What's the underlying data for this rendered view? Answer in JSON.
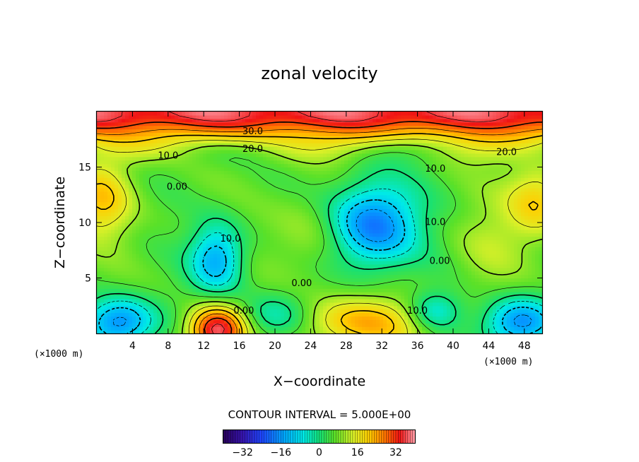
{
  "chart_data": {
    "type": "heatmap",
    "title": "zonal velocity",
    "xlabel": "X−coordinate",
    "ylabel": "Z−coordinate",
    "x_unit_left": "(×1000 m)",
    "x_unit_right": "(×1000 m)",
    "xlim": [
      0,
      50
    ],
    "ylim": [
      0,
      20
    ],
    "x_ticks": [
      4,
      8,
      12,
      16,
      20,
      24,
      28,
      32,
      36,
      40,
      44,
      48
    ],
    "x_tick_labels": [
      "4",
      "8",
      "12",
      "16",
      "20",
      "24",
      "28",
      "32",
      "36",
      "40",
      "44",
      "48"
    ],
    "y_ticks": [
      5,
      10,
      15
    ],
    "y_tick_labels": [
      "5",
      "10",
      "15"
    ],
    "contour_interval_text": "CONTOUR INTERVAL = 5.000E+00",
    "contour_interval": 5.0,
    "colorbar": {
      "range": [
        -40,
        40
      ],
      "ticks": [
        -32,
        -16,
        0,
        16,
        32
      ],
      "tick_labels": [
        "−32",
        "−16",
        "0",
        "16",
        "32"
      ]
    },
    "contour_labels": [
      {
        "text": "30.0",
        "x": 17.5,
        "z": 18.2
      },
      {
        "text": "20.0",
        "x": 17.5,
        "z": 16.6
      },
      {
        "text": "20.0",
        "x": 46.0,
        "z": 16.3
      },
      {
        "text": "10.0",
        "x": 8.0,
        "z": 16.0
      },
      {
        "text": "10.0",
        "x": 38.0,
        "z": 14.8
      },
      {
        "text": "0.00",
        "x": 9.0,
        "z": 13.2
      },
      {
        "text": "10.0",
        "x": 15.0,
        "z": 8.5
      },
      {
        "text": "10.0",
        "x": 38.0,
        "z": 10.0
      },
      {
        "text": "0.00",
        "x": 38.5,
        "z": 6.5
      },
      {
        "text": "0.00",
        "x": 23.0,
        "z": 4.5
      },
      {
        "text": "0.00",
        "x": 16.5,
        "z": 2.0
      },
      {
        "text": "10.0",
        "x": 36.0,
        "z": 2.0
      }
    ],
    "field_features": [
      {
        "kind": "jet",
        "z": 19.5,
        "value": 36
      },
      {
        "kind": "max",
        "x": 0.5,
        "z": 12.0,
        "value": 20
      },
      {
        "kind": "max",
        "x": 49.5,
        "z": 12.0,
        "value": 20
      },
      {
        "kind": "min",
        "x": 13.5,
        "z": 6.8,
        "value": -14
      },
      {
        "kind": "min",
        "x": 31.0,
        "z": 9.8,
        "value": -20
      },
      {
        "kind": "max",
        "x": 13.5,
        "z": 0.3,
        "value": 36
      },
      {
        "kind": "max",
        "x": 30.0,
        "z": 1.0,
        "value": 22
      },
      {
        "kind": "min",
        "x": 2.5,
        "z": 1.0,
        "value": -18
      },
      {
        "kind": "min",
        "x": 47.5,
        "z": 1.0,
        "value": -18
      },
      {
        "kind": "min",
        "x": 38.0,
        "z": 2.0,
        "value": -10
      }
    ]
  }
}
